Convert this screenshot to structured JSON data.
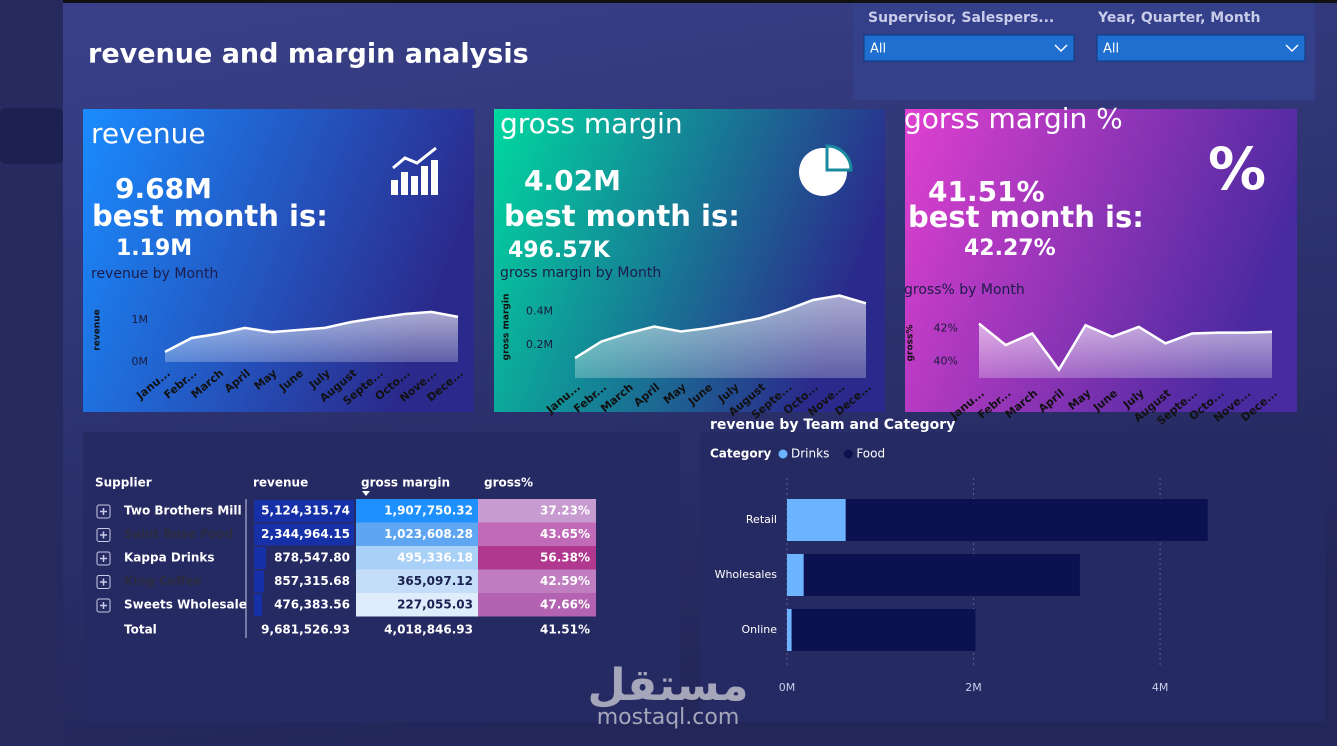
{
  "header": {
    "title": "revenue and margin analysis"
  },
  "slicers": [
    {
      "label": "Supervisor, Salespers...",
      "value": "All"
    },
    {
      "label": "Year, Quarter, Month",
      "value": "All"
    }
  ],
  "cards": [
    {
      "title": "revenue",
      "value": "9.68M",
      "best_label": "best month is:",
      "best_value": "1.19M"
    },
    {
      "title": "gross margin",
      "value": "4.02M",
      "best_label": "best month is:",
      "best_value": "496.57K"
    },
    {
      "title": "gorss margin %",
      "value": "41.51%",
      "best_label": "best month is:",
      "best_value": "42.27%",
      "icon": "%"
    }
  ],
  "table": {
    "columns": [
      "Supplier",
      "revenue",
      "gross margin",
      "gross%"
    ],
    "rows": [
      [
        "Two Brothers Mill",
        "5,124,315.74",
        "1,907,750.32",
        "37.23%"
      ],
      [
        "Saint Rose Food",
        "2,344,964.15",
        "1,023,608.28",
        "43.65%"
      ],
      [
        "Kappa Drinks",
        "878,547.80",
        "495,336.18",
        "56.38%"
      ],
      [
        "King Coffee",
        "857,315.68",
        "365,097.12",
        "42.59%"
      ],
      [
        "Sweets Wholesale",
        "476,383.56",
        "227,055.03",
        "47.66%"
      ]
    ],
    "total": [
      "Total",
      "9,681,526.93",
      "4,018,846.93",
      "41.51%"
    ]
  },
  "chart_data": [
    {
      "type": "line",
      "title": "revenue by Month",
      "y_label": "revenue",
      "color": "#ffffff",
      "categories": [
        "Janu...",
        "Febr...",
        "March",
        "April",
        "May",
        "June",
        "July",
        "August",
        "Septe...",
        "Octo...",
        "Nove...",
        "Dece..."
      ],
      "values": [
        0.24,
        0.57,
        0.67,
        0.81,
        0.71,
        0.76,
        0.81,
        0.95,
        1.05,
        1.14,
        1.19,
        1.07
      ],
      "ylim": [
        0,
        1.4
      ],
      "yticks": [
        {
          "value": 0,
          "label": "0M"
        },
        {
          "value": 1,
          "label": "1M"
        }
      ]
    },
    {
      "type": "line",
      "title": "gross margin by Month",
      "y_label": "gross margin",
      "color": "#ffffff",
      "categories": [
        "Janu...",
        "Febr...",
        "March",
        "April",
        "May",
        "June",
        "July",
        "August",
        "Septe...",
        "Octo...",
        "Nove...",
        "Dece..."
      ],
      "values": [
        0.12,
        0.22,
        0.27,
        0.31,
        0.28,
        0.3,
        0.33,
        0.36,
        0.41,
        0.47,
        0.497,
        0.45
      ],
      "ylim": [
        0,
        0.5
      ],
      "yticks": [
        {
          "value": 0.2,
          "label": "0.2M"
        },
        {
          "value": 0.4,
          "label": "0.4M"
        }
      ]
    },
    {
      "type": "line",
      "title": "gross% by Month",
      "y_label": "gross%",
      "color": "#ffffff",
      "categories": [
        "Janu...",
        "Febr...",
        "March",
        "April",
        "May",
        "June",
        "July",
        "August",
        "Septe...",
        "Octo...",
        "Nove...",
        "Dece..."
      ],
      "values": [
        42.3,
        41.0,
        41.7,
        39.5,
        42.2,
        41.5,
        42.1,
        41.1,
        41.7,
        41.75,
        41.75,
        41.8
      ],
      "ylim": [
        39,
        42.6
      ],
      "yticks": [
        {
          "value": 40,
          "label": "40%"
        },
        {
          "value": 42,
          "label": "42%"
        }
      ]
    },
    {
      "type": "bar",
      "orientation": "horizontal",
      "stacked": true,
      "title": "revenue by Team and Category",
      "legend_title": "Category",
      "categories": [
        "Retail",
        "Wholesales",
        "Online"
      ],
      "series": [
        {
          "name": "Drinks",
          "color": "#6cb4ff",
          "values": [
            0.63,
            0.18,
            0.05
          ]
        },
        {
          "name": "Food",
          "color": "#0c1150",
          "values": [
            3.88,
            2.96,
            1.97
          ]
        }
      ],
      "xlim": [
        0,
        5.5
      ],
      "xticks": [
        {
          "value": 0,
          "label": "0M"
        },
        {
          "value": 2,
          "label": "2M"
        },
        {
          "value": 4,
          "label": "4M"
        }
      ],
      "grid": true
    }
  ],
  "watermark": {
    "arabic": "مستقل",
    "latin": "mostaql.com"
  }
}
